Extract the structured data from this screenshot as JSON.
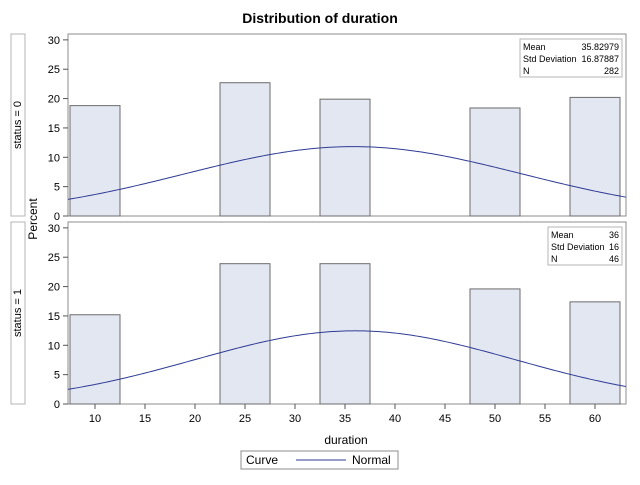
{
  "chart_data": {
    "type": "bar",
    "title": "Distribution of duration",
    "xlabel": "duration",
    "ylabel": "Percent",
    "x_ticks": [
      10,
      15,
      20,
      25,
      30,
      35,
      40,
      45,
      50,
      55,
      60
    ],
    "ylim": [
      0,
      31
    ],
    "y_ticks": [
      0,
      5,
      10,
      15,
      20,
      25,
      30
    ],
    "bin_centers": [
      10,
      25,
      35,
      50,
      60
    ],
    "bin_width": 5,
    "grid": false,
    "legend": {
      "title": "Curve",
      "placement": "bottom",
      "entries": [
        {
          "name": "Normal",
          "color": "#2f3b95"
        }
      ]
    },
    "colors": {
      "bar_fill": "#e3e7f1",
      "bar_stroke": "#6b6b6b",
      "curve": "#2f3b95"
    },
    "panels": [
      {
        "label": "status = 0",
        "values": [
          18.8,
          22.7,
          19.9,
          18.4,
          20.2
        ],
        "normal_curve": {
          "mean": 35.82979,
          "sd": 16.87887
        },
        "stats": [
          {
            "name": "Mean",
            "value": "35.82979"
          },
          {
            "name": "Std Deviation",
            "value": "16.87887"
          },
          {
            "name": "N",
            "value": "282"
          }
        ]
      },
      {
        "label": "status = 1",
        "values": [
          15.2,
          23.9,
          23.9,
          19.6,
          17.4
        ],
        "normal_curve": {
          "mean": 36,
          "sd": 16
        },
        "stats": [
          {
            "name": "Mean",
            "value": "36"
          },
          {
            "name": "Std Deviation",
            "value": "16"
          },
          {
            "name": "N",
            "value": "46"
          }
        ]
      }
    ]
  }
}
